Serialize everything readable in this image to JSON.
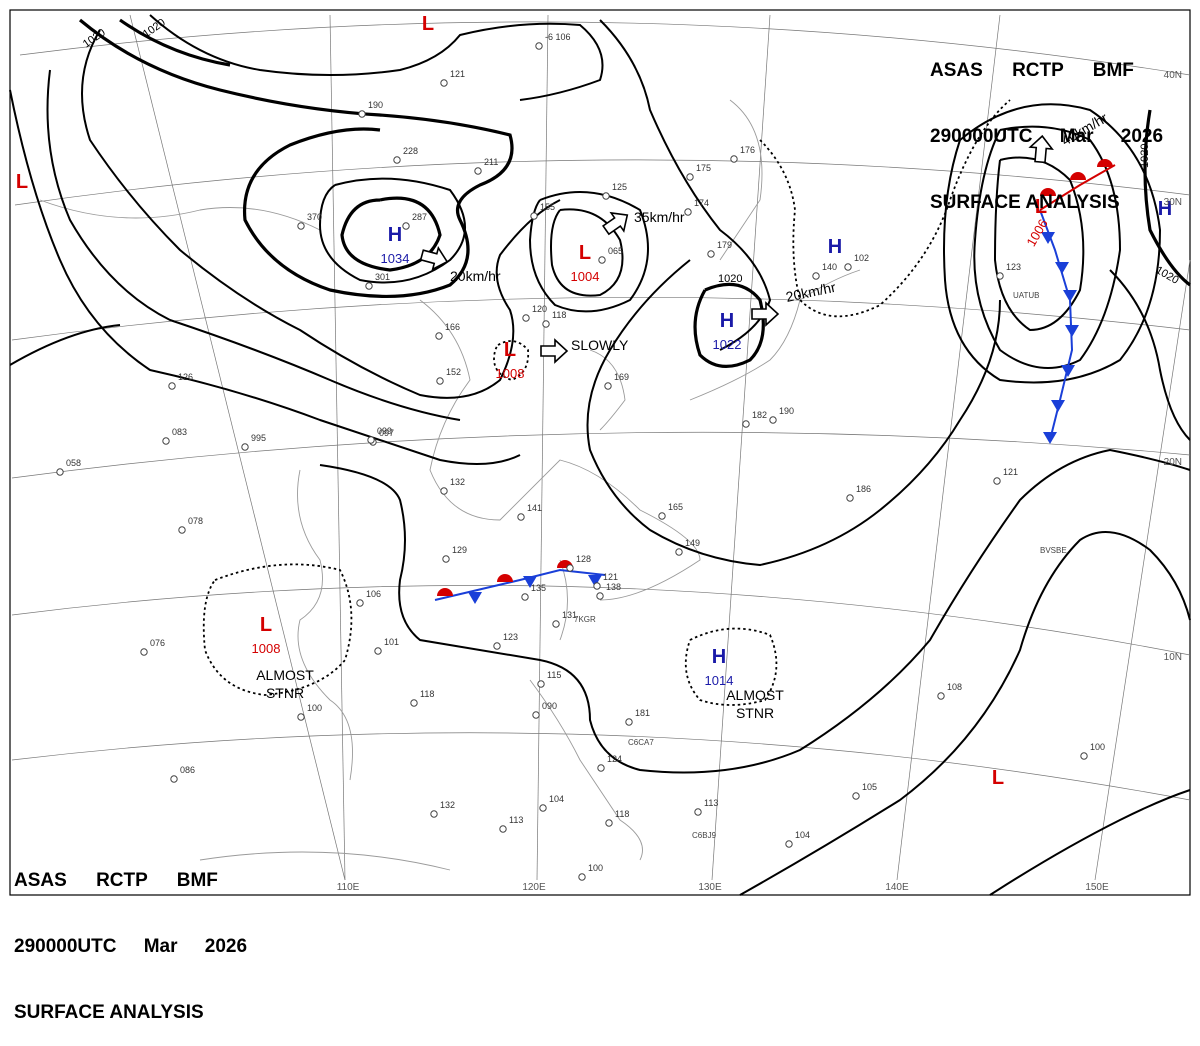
{
  "header": {
    "line1": "ASAS RCTP BMF",
    "line2": "290000UTC Mar 2026",
    "line3": "SURFACE ANALYSIS"
  },
  "lon_labels": [
    "110E",
    "120E",
    "130E",
    "140E",
    "150E"
  ],
  "lat_labels": [
    "40N",
    "30N",
    "20N",
    "10N"
  ],
  "isobar_labels": [
    "1020",
    "1020",
    "1020",
    "1020",
    "1020"
  ],
  "centers": [
    {
      "type": "H",
      "pressure": "1034",
      "color": "#1a1aa8"
    },
    {
      "type": "L",
      "pressure": "1004",
      "color": "#d40000"
    },
    {
      "type": "L",
      "pressure": "1008",
      "color": "#d40000"
    },
    {
      "type": "H",
      "pressure": "1022",
      "color": "#1a1aa8"
    },
    {
      "type": "L",
      "pressure": "1006",
      "color": "#d40000"
    },
    {
      "type": "L",
      "pressure": "1008",
      "color": "#d40000"
    },
    {
      "type": "H",
      "pressure": "1014",
      "color": "#1a1aa8"
    },
    {
      "type": "L",
      "pressure": "",
      "color": "#d40000"
    },
    {
      "type": "L",
      "pressure": "",
      "color": "#d40000"
    },
    {
      "type": "H",
      "pressure": "",
      "color": "#1a1aa8"
    },
    {
      "type": "H",
      "pressure": "",
      "color": "#1a1aa8"
    },
    {
      "type": "L",
      "pressure": "",
      "color": "#d40000"
    }
  ],
  "motions": [
    {
      "text": "20km/hr"
    },
    {
      "text": "35km/hr"
    },
    {
      "text": "SLOWLY"
    },
    {
      "text": "20km/hr"
    },
    {
      "text": "40km/hr"
    }
  ],
  "status_notes": [
    {
      "line1": "ALMOST",
      "line2": "STNR"
    },
    {
      "line1": "ALMOST",
      "line2": "STNR"
    }
  ],
  "station_readings": [
    "-6 106",
    "121",
    "190",
    "228",
    "211",
    "370",
    "287",
    "301",
    "155",
    "125",
    "065",
    "175",
    "176",
    "174",
    "179",
    "140",
    "120",
    "118",
    "169",
    "152",
    "166",
    "097",
    "126",
    "083",
    "995",
    "099",
    "058",
    "078",
    "132",
    "141",
    "165",
    "149",
    "129",
    "128",
    "121",
    "138",
    "106",
    "135",
    "131",
    "123",
    "101",
    "076",
    "118",
    "100",
    "086",
    "115",
    "090",
    "181",
    "124",
    "104",
    "132",
    "113",
    "118",
    "100",
    "113",
    "104",
    "105",
    "100",
    "108",
    "121",
    "186",
    "182",
    "190",
    "123",
    "102"
  ],
  "station_ids": [
    "C6CA7",
    "C6BJ9",
    "BVSBE",
    "UATUB",
    "7KGR"
  ],
  "colors": {
    "high": "#1a1aa8",
    "low": "#d40000",
    "cold_front": "#1a3fd8",
    "warm_front": "#d40000"
  }
}
